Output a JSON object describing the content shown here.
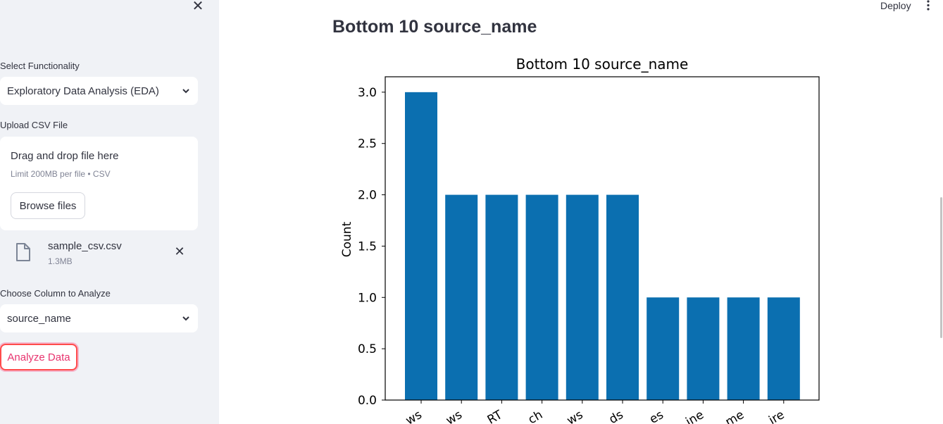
{
  "sidebar": {
    "functionality_label": "Select Functionality",
    "functionality_value": "Exploratory Data Analysis (EDA)",
    "upload_label": "Upload CSV File",
    "drag_drop_text": "Drag and drop file here",
    "limit_text": "Limit 200MB per file • CSV",
    "browse_label": "Browse files",
    "uploaded_file": {
      "name": "sample_csv.csv",
      "size": "1.3MB"
    },
    "column_label": "Choose Column to Analyze",
    "column_value": "source_name",
    "analyze_label": "Analyze Data"
  },
  "header": {
    "deploy_label": "Deploy"
  },
  "main": {
    "heading": "Bottom 10 source_name"
  },
  "colors": {
    "bar": "#0b6fb0",
    "accent": "#ff4b4b",
    "sidebar_bg": "#f0f2f6"
  },
  "icons": [
    "close-icon",
    "chevron-down-icon",
    "file-icon",
    "kebab-menu-icon"
  ],
  "chart_data": {
    "type": "bar",
    "title": "Bottom 10 source_name",
    "xlabel": "",
    "ylabel": "Count",
    "categories": [
      "ws",
      "ws",
      "RT",
      "ch",
      "ws",
      "ds",
      "es",
      "ine",
      "me",
      "ire"
    ],
    "values": [
      3,
      2,
      2,
      2,
      2,
      2,
      1,
      1,
      1,
      1
    ],
    "ylim": [
      0,
      3.15
    ],
    "yticks": [
      0.0,
      0.5,
      1.0,
      1.5,
      2.0,
      2.5,
      3.0
    ],
    "ytick_labels": [
      "0.0",
      "0.5",
      "1.0",
      "1.5",
      "2.0",
      "2.5",
      "3.0"
    ],
    "color": "#0b6fb0"
  }
}
